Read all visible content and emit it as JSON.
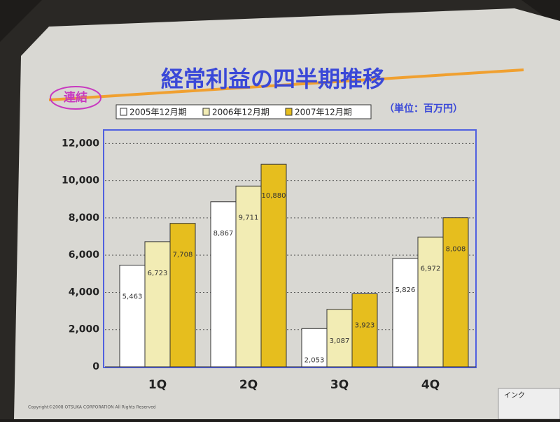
{
  "chart_data": {
    "type": "bar",
    "title": "経常利益の四半期推移",
    "annotations": [
      "連結",
      "（単位：百万円）",
      "Copyright©2008 OTSUKA CORPORATION All Rights Reserved",
      "インク"
    ],
    "categories": [
      "1Q",
      "2Q",
      "3Q",
      "4Q"
    ],
    "series": [
      {
        "name": "2005年12月期",
        "color": "#ffffff",
        "values": [
          5463,
          8867,
          2053,
          5826
        ],
        "value_labels": [
          "5,463",
          "8,867",
          "2,053",
          "5,826"
        ]
      },
      {
        "name": "2006年12月期",
        "color": "#f2ecb4",
        "values": [
          6723,
          9711,
          3087,
          6972
        ],
        "value_labels": [
          "6,723",
          "9,711",
          "3,087",
          "6,972"
        ]
      },
      {
        "name": "2007年12月期",
        "color": "#e6be1e",
        "values": [
          7708,
          10880,
          3923,
          8008
        ],
        "value_labels": [
          "7,708",
          "10,880",
          "3,923",
          "8,008"
        ]
      }
    ],
    "ylim": [
      0,
      12500
    ],
    "yticks": [
      0,
      {
        "value": 2000,
        "label": "2,000"
      },
      {
        "value": 4000,
        "label": "4,000"
      },
      {
        "value": 6000,
        "label": "6,000"
      },
      {
        "value": 8000,
        "label": "8,000"
      },
      {
        "value": 10000,
        "label": "10,000"
      },
      {
        "value": 12000,
        "label": "12,000"
      }
    ],
    "grid": true,
    "legend": "top"
  }
}
